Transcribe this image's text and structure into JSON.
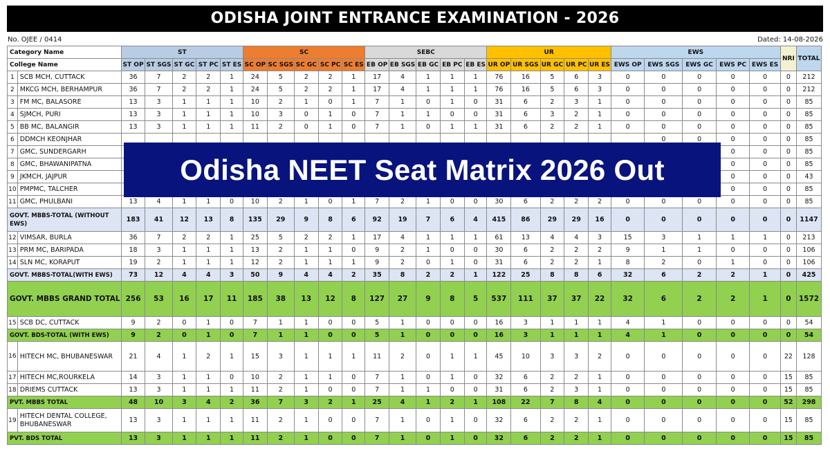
{
  "title": "ODISHA JOINT ENTRANCE EXAMINATION - 2026",
  "ref_no": "No. OJEE / 0414",
  "dated": "Dated: 14-08-2026",
  "banner": "Odisha NEET Seat Matrix 2026 Out",
  "header": {
    "category_name": "Category Name",
    "college_name": "College Name",
    "groups": [
      "ST",
      "SC",
      "SEBC",
      "UR",
      "EWS"
    ],
    "nri": "NRI",
    "total": "TOTAL",
    "subcols": [
      "ST OP",
      "ST SGS",
      "ST GC",
      "ST PC",
      "ST ES",
      "SC OP",
      "SC SGS",
      "SC GC",
      "SC PC",
      "SC ES",
      "EB OP",
      "EB SGS",
      "EB GC",
      "EB PC",
      "EB ES",
      "UR OP",
      "UR SGS",
      "UR GC",
      "UR PC",
      "UR ES",
      "EWS OP",
      "EWS SGS",
      "EWS GC",
      "EWS PC",
      "EWS ES"
    ]
  },
  "rows": [
    {
      "no": "1",
      "name": "SCB MCH, CUTTACK",
      "vals": [
        "36",
        "7",
        "2",
        "2",
        "1",
        "24",
        "5",
        "2",
        "2",
        "1",
        "17",
        "4",
        "1",
        "1",
        "1",
        "76",
        "16",
        "5",
        "6",
        "3",
        "0",
        "0",
        "0",
        "0",
        "0",
        "0",
        "212"
      ]
    },
    {
      "no": "2",
      "name": "MKCG MCH, BERHAMPUR",
      "vals": [
        "36",
        "7",
        "2",
        "2",
        "1",
        "24",
        "5",
        "2",
        "2",
        "1",
        "17",
        "4",
        "1",
        "1",
        "1",
        "76",
        "16",
        "5",
        "6",
        "3",
        "0",
        "0",
        "0",
        "0",
        "0",
        "0",
        "212"
      ]
    },
    {
      "no": "3",
      "name": "FM MC, BALASORE",
      "vals": [
        "13",
        "3",
        "1",
        "1",
        "1",
        "10",
        "2",
        "1",
        "0",
        "1",
        "7",
        "1",
        "0",
        "1",
        "0",
        "31",
        "6",
        "2",
        "3",
        "1",
        "0",
        "0",
        "0",
        "0",
        "0",
        "0",
        "85"
      ]
    },
    {
      "no": "4",
      "name": "SJMCH, PURI",
      "vals": [
        "13",
        "3",
        "1",
        "1",
        "1",
        "10",
        "3",
        "0",
        "1",
        "0",
        "7",
        "1",
        "1",
        "0",
        "0",
        "31",
        "6",
        "3",
        "2",
        "1",
        "0",
        "0",
        "0",
        "0",
        "0",
        "0",
        "85"
      ]
    },
    {
      "no": "5",
      "name": "BB MC, BALANGIR",
      "vals": [
        "13",
        "3",
        "1",
        "1",
        "1",
        "11",
        "2",
        "0",
        "1",
        "0",
        "7",
        "1",
        "0",
        "1",
        "1",
        "31",
        "6",
        "2",
        "2",
        "1",
        "0",
        "0",
        "0",
        "0",
        "0",
        "0",
        "85"
      ]
    },
    {
      "no": "6",
      "name": "DDMCH KEONJHAR",
      "vals": [
        "",
        "",
        "",
        "",
        "",
        "",
        "",
        "",
        "",
        "",
        "",
        "",
        "",
        "",
        "",
        "",
        "",
        "",
        "",
        "",
        "",
        "0",
        "0",
        "0",
        "0",
        "0",
        "85"
      ]
    },
    {
      "no": "7",
      "name": "GMC, SUNDERGARH",
      "vals": [
        "",
        "",
        "",
        "",
        "",
        "",
        "",
        "",
        "",
        "",
        "",
        "",
        "",
        "",
        "",
        "",
        "",
        "",
        "",
        "",
        "",
        "0",
        "0",
        "0",
        "0",
        "0",
        "85"
      ]
    },
    {
      "no": "8",
      "name": "GMC, BHAWANIPATNA",
      "vals": [
        "",
        "",
        "",
        "",
        "",
        "",
        "",
        "",
        "",
        "",
        "",
        "",
        "",
        "",
        "",
        "",
        "",
        "",
        "",
        "",
        "",
        "0",
        "0",
        "0",
        "0",
        "0",
        "85"
      ]
    },
    {
      "no": "9",
      "name": "JKMCH, JAJPUR",
      "vals": [
        "",
        "",
        "",
        "",
        "",
        "",
        "",
        "",
        "",
        "",
        "",
        "",
        "",
        "",
        "",
        "",
        "",
        "",
        "",
        "",
        "",
        "0",
        "0",
        "0",
        "0",
        "0",
        "43"
      ]
    },
    {
      "no": "10",
      "name": "PMPMC, TALCHER",
      "vals": [
        "13",
        "3",
        "1",
        "1",
        "1",
        "11",
        "2",
        "0",
        "1",
        "0",
        "6",
        "1",
        "1",
        "1",
        "0",
        "31",
        "7",
        "2",
        "2",
        "1",
        "0",
        "0",
        "0",
        "0",
        "0",
        "0",
        "85"
      ]
    },
    {
      "no": "11",
      "name": "GMC, PHULBANI",
      "vals": [
        "13",
        "4",
        "1",
        "1",
        "0",
        "10",
        "2",
        "1",
        "0",
        "1",
        "7",
        "2",
        "1",
        "0",
        "0",
        "30",
        "6",
        "2",
        "2",
        "2",
        "0",
        "0",
        "0",
        "0",
        "0",
        "0",
        "85"
      ]
    }
  ],
  "govt_total_wo_ews": {
    "label": "GOVT. MBBS-TOTAL (WITHOUT EWS)",
    "vals": [
      "183",
      "41",
      "12",
      "13",
      "8",
      "135",
      "29",
      "9",
      "8",
      "6",
      "92",
      "19",
      "7",
      "6",
      "4",
      "415",
      "86",
      "29",
      "29",
      "16",
      "0",
      "0",
      "0",
      "0",
      "0",
      "0",
      "1147"
    ]
  },
  "rows2": [
    {
      "no": "12",
      "name": "VIMSAR, BURLA",
      "vals": [
        "36",
        "7",
        "2",
        "2",
        "1",
        "25",
        "5",
        "2",
        "2",
        "1",
        "17",
        "4",
        "1",
        "1",
        "1",
        "61",
        "13",
        "4",
        "4",
        "3",
        "15",
        "3",
        "1",
        "1",
        "1",
        "0",
        "213"
      ]
    },
    {
      "no": "13",
      "name": "PRM MC, BARIPADA",
      "vals": [
        "18",
        "3",
        "1",
        "1",
        "1",
        "13",
        "2",
        "1",
        "1",
        "0",
        "9",
        "2",
        "1",
        "0",
        "0",
        "30",
        "6",
        "2",
        "2",
        "2",
        "9",
        "1",
        "1",
        "0",
        "0",
        "0",
        "106"
      ]
    },
    {
      "no": "14",
      "name": "SLN MC, KORAPUT",
      "vals": [
        "19",
        "2",
        "1",
        "1",
        "1",
        "12",
        "2",
        "1",
        "1",
        "1",
        "9",
        "2",
        "0",
        "1",
        "0",
        "31",
        "6",
        "2",
        "2",
        "1",
        "8",
        "2",
        "0",
        "1",
        "0",
        "0",
        "106"
      ]
    }
  ],
  "govt_total_with_ews": {
    "label": "GOVT. MBBS-TOTAL(WITH EWS)",
    "vals": [
      "73",
      "12",
      "4",
      "4",
      "3",
      "50",
      "9",
      "4",
      "4",
      "2",
      "35",
      "8",
      "2",
      "2",
      "1",
      "122",
      "25",
      "8",
      "8",
      "6",
      "32",
      "6",
      "2",
      "2",
      "1",
      "0",
      "425"
    ]
  },
  "grand_total": {
    "label": "GOVT. MBBS GRAND TOTAL",
    "vals": [
      "256",
      "53",
      "16",
      "17",
      "11",
      "185",
      "38",
      "13",
      "12",
      "8",
      "127",
      "27",
      "9",
      "8",
      "5",
      "537",
      "111",
      "37",
      "37",
      "22",
      "32",
      "6",
      "2",
      "2",
      "1",
      "0",
      "1572"
    ]
  },
  "rows3": [
    {
      "no": "15",
      "name": "SCB DC, CUTTACK",
      "vals": [
        "9",
        "2",
        "0",
        "1",
        "0",
        "7",
        "1",
        "1",
        "0",
        "0",
        "5",
        "1",
        "0",
        "0",
        "0",
        "16",
        "3",
        "1",
        "1",
        "1",
        "4",
        "1",
        "0",
        "0",
        "0",
        "0",
        "54"
      ]
    }
  ],
  "bds_total": {
    "label": "GOVT. BDS-TOTAL (WITH EWS)",
    "vals": [
      "9",
      "2",
      "0",
      "1",
      "0",
      "7",
      "1",
      "1",
      "0",
      "0",
      "5",
      "1",
      "0",
      "0",
      "0",
      "16",
      "3",
      "1",
      "1",
      "1",
      "4",
      "1",
      "0",
      "0",
      "0",
      "0",
      "54"
    ]
  },
  "rows4": [
    {
      "no": "16",
      "name": "HITECH MC, BHUBANESWAR",
      "vals": [
        "21",
        "4",
        "1",
        "2",
        "1",
        "15",
        "3",
        "1",
        "1",
        "1",
        "11",
        "2",
        "0",
        "1",
        "1",
        "45",
        "10",
        "3",
        "3",
        "2",
        "0",
        "0",
        "0",
        "0",
        "0",
        "22",
        "128"
      ]
    },
    {
      "no": "17",
      "name": "HITECH MC,ROURKELA",
      "vals": [
        "14",
        "3",
        "1",
        "1",
        "0",
        "10",
        "2",
        "1",
        "1",
        "0",
        "7",
        "1",
        "0",
        "1",
        "0",
        "32",
        "6",
        "2",
        "2",
        "1",
        "0",
        "0",
        "0",
        "0",
        "0",
        "15",
        "85"
      ]
    },
    {
      "no": "18",
      "name": "DRIEMS CUTTACK",
      "vals": [
        "13",
        "3",
        "1",
        "1",
        "1",
        "11",
        "2",
        "1",
        "0",
        "0",
        "7",
        "1",
        "1",
        "0",
        "0",
        "31",
        "6",
        "2",
        "3",
        "1",
        "0",
        "0",
        "0",
        "0",
        "0",
        "15",
        "85"
      ]
    }
  ],
  "pvt_mbbs_total": {
    "label": "PVT. MBBS TOTAL",
    "vals": [
      "48",
      "10",
      "3",
      "4",
      "2",
      "36",
      "7",
      "3",
      "2",
      "1",
      "25",
      "4",
      "1",
      "2",
      "1",
      "108",
      "22",
      "7",
      "8",
      "4",
      "0",
      "0",
      "0",
      "0",
      "0",
      "52",
      "298"
    ]
  },
  "rows5": [
    {
      "no": "19",
      "name": "HITECH DENTAL COLLEGE, BHUBANESWAR",
      "vals": [
        "13",
        "3",
        "1",
        "1",
        "1",
        "11",
        "2",
        "1",
        "0",
        "0",
        "7",
        "1",
        "0",
        "1",
        "0",
        "32",
        "6",
        "2",
        "2",
        "1",
        "0",
        "0",
        "0",
        "0",
        "0",
        "15",
        "85"
      ]
    }
  ],
  "pvt_bds_total": {
    "label": "PVT. BDS TOTAL",
    "vals": [
      "13",
      "3",
      "1",
      "1",
      "1",
      "11",
      "2",
      "1",
      "0",
      "0",
      "7",
      "1",
      "0",
      "1",
      "0",
      "32",
      "6",
      "2",
      "2",
      "1",
      "0",
      "0",
      "0",
      "0",
      "0",
      "15",
      "85"
    ]
  },
  "colors": {
    "st": "#b8cce4",
    "sc": "#ed7d31",
    "sebc": "#d9d9d9",
    "ur": "#ffc000",
    "ews": "#bdd7ee",
    "total_row": "#92d050",
    "banner": "#08137e"
  }
}
